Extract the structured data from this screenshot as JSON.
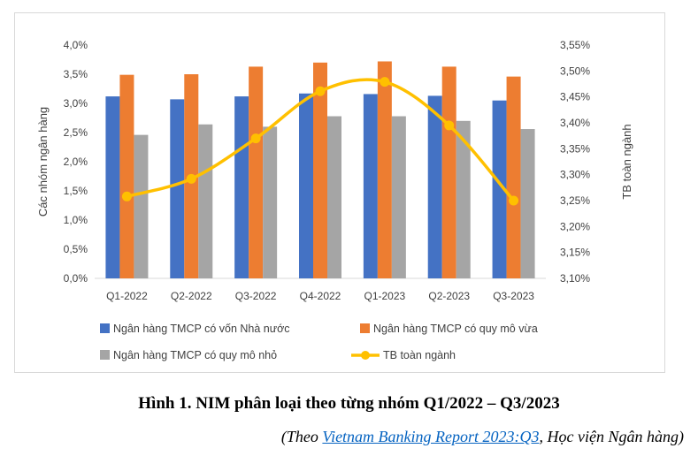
{
  "chart_data": {
    "type": "bar",
    "categories": [
      "Q1-2022",
      "Q2-2022",
      "Q3-2022",
      "Q4-2022",
      "Q1-2023",
      "Q2-2023",
      "Q3-2023"
    ],
    "series": [
      {
        "name": "Ngân hàng TMCP có vốn Nhà nước",
        "type": "bar",
        "axis": "left",
        "color": "#4472c4",
        "values": [
          3.12,
          3.07,
          3.12,
          3.17,
          3.16,
          3.13,
          3.05
        ]
      },
      {
        "name": "Ngân hàng TMCP có quy mô vừa",
        "type": "bar",
        "axis": "left",
        "color": "#ed7d31",
        "values": [
          3.49,
          3.5,
          3.63,
          3.7,
          3.72,
          3.63,
          3.46
        ]
      },
      {
        "name": "Ngân hàng TMCP có quy mô nhỏ",
        "type": "bar",
        "axis": "left",
        "color": "#a5a5a5",
        "values": [
          2.46,
          2.64,
          2.6,
          2.78,
          2.78,
          2.7,
          2.56
        ]
      },
      {
        "name": "TB toàn ngành",
        "type": "line",
        "axis": "right",
        "color": "#ffc000",
        "smooth": true,
        "values": [
          3.258,
          3.292,
          3.37,
          3.461,
          3.479,
          3.395,
          3.25
        ]
      }
    ],
    "ylabel": "Các nhóm ngân hàng",
    "y2label": "TB toàn ngành",
    "ylim": [
      0,
      4.0
    ],
    "y2lim": [
      3.1,
      3.55
    ],
    "yticks": [
      "0,0%",
      "0,5%",
      "1,0%",
      "1,5%",
      "2,0%",
      "2,5%",
      "3,0%",
      "3,5%",
      "4,0%"
    ],
    "y2ticks": [
      "3,10%",
      "3,15%",
      "3,20%",
      "3,25%",
      "3,30%",
      "3,35%",
      "3,40%",
      "3,45%",
      "3,50%",
      "3,55%"
    ],
    "grid": false,
    "legend_position": "bottom"
  },
  "caption": "Hình 1. NIM phân loại theo từng nhóm Q1/2022 – Q3/2023",
  "source": {
    "prefix": "(Theo ",
    "link_text": "Vietnam Banking Report 2023:Q3",
    "suffix": ", Học viện Ngân hàng)"
  }
}
